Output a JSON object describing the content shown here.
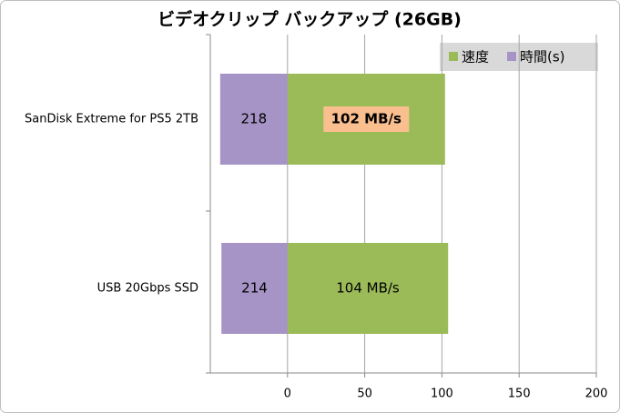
{
  "chart_data": {
    "type": "bar",
    "orientation": "horizontal",
    "title": "ビデオクリップ バックアップ (26GB)",
    "categories": [
      "SanDisk Extreme for PS5 2TB",
      "USB 20Gbps SSD"
    ],
    "series": [
      {
        "name": "速度",
        "color": "#9bbb59",
        "values": [
          102,
          104
        ],
        "value_labels": [
          "102 MB/s",
          "104 MB/s"
        ],
        "highlight": [
          true,
          false
        ]
      },
      {
        "name": "時間(s)",
        "color": "#a594c5",
        "values": [
          218,
          214
        ],
        "axis": "x2"
      }
    ],
    "xlim": [
      -50,
      200
    ],
    "xticks": [
      0,
      50,
      100,
      150,
      200
    ],
    "x2lim": [
      250,
      -1000
    ],
    "grid": true,
    "legend": "top-right"
  }
}
